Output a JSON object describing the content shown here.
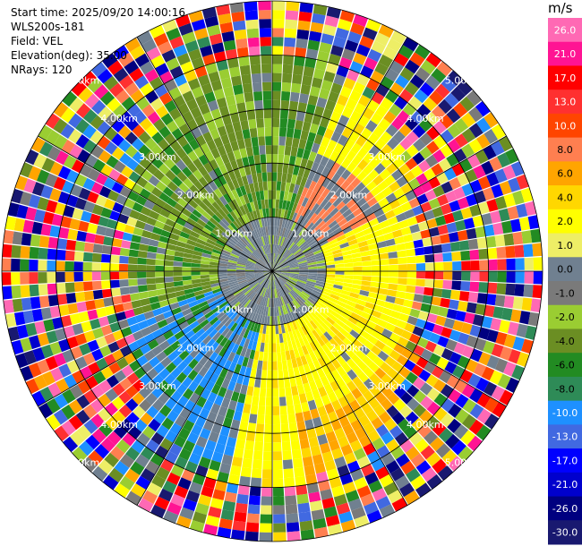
{
  "info": {
    "start_time": "Start time: 2025/09/20 14:00:16",
    "instrument": "WLS200s-181",
    "field": "Field: VEL",
    "elevation": "Elevation(deg): 35.00",
    "nrays": "NRays: 120"
  },
  "colorbar": {
    "unit": "m/s",
    "ticks": [
      "26.0",
      "21.0",
      "17.0",
      "13.0",
      "10.0",
      "8.0",
      "6.0",
      "4.0",
      "2.0",
      "1.0",
      "0.0",
      "-1.0",
      "-2.0",
      "-4.0",
      "-6.0",
      "-8.0",
      "-10.0",
      "-13.0",
      "-17.0",
      "-21.0",
      "-26.0",
      "-30.0"
    ],
    "colors": [
      "#ff69b4",
      "#ff1493",
      "#ff0000",
      "#ff3030",
      "#ff4500",
      "#ff7f50",
      "#ffa500",
      "#ffd700",
      "#ffff00",
      "#eeee66",
      "#708090",
      "#7a7a7a",
      "#9acd32",
      "#6b8e23",
      "#228b22",
      "#2e8b57",
      "#1e90ff",
      "#4169e1",
      "#0000ff",
      "#0000cd",
      "#000080",
      "#191970"
    ]
  },
  "chart_data": {
    "type": "heatmap",
    "subtype": "polar-ppi",
    "field": "VEL",
    "units": "m/s",
    "nrays": 120,
    "range_rings_km": [
      1,
      2,
      3,
      4,
      5
    ],
    "ring_labels": [
      "1.00km",
      "2.00km",
      "3.00km",
      "4.00km",
      "5.00km"
    ],
    "color_range": [
      -30,
      26
    ],
    "grid": true
  }
}
